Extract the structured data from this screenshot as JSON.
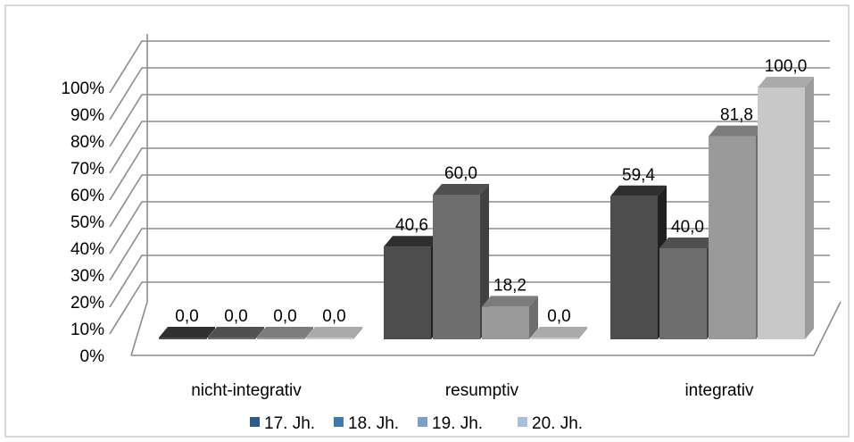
{
  "chart_data": {
    "type": "bar",
    "categories": [
      "nicht-integrativ",
      "resumptiv",
      "integrativ"
    ],
    "series": [
      {
        "name": "17. Jh.",
        "values": [
          0.0,
          40.6,
          59.4
        ],
        "labels": [
          "0,0",
          "40,6",
          "59,4"
        ]
      },
      {
        "name": "18. Jh.",
        "values": [
          0.0,
          60.0,
          40.0
        ],
        "labels": [
          "0,0",
          "60,0",
          "40,0"
        ]
      },
      {
        "name": "19. Jh.",
        "values": [
          0.0,
          18.2,
          81.8
        ],
        "labels": [
          "0,0",
          "18,2",
          "81,8"
        ]
      },
      {
        "name": "20. Jh.",
        "values": [
          0.0,
          0.0,
          100.0
        ],
        "labels": [
          "0,0",
          "0,0",
          "100,0"
        ]
      }
    ],
    "ylim": [
      0,
      100
    ],
    "yticks": [
      0,
      10,
      20,
      30,
      40,
      50,
      60,
      70,
      80,
      90,
      100
    ],
    "ytick_labels": [
      "0%",
      "10%",
      "20%",
      "30%",
      "40%",
      "50%",
      "60%",
      "70%",
      "80%",
      "90%",
      "100%"
    ],
    "grid": true,
    "legend_position": "bottom",
    "title": "",
    "xlabel": "",
    "ylabel": "",
    "series_colors": [
      "#4d4d4d",
      "#6e6e6e",
      "#9a9a9a",
      "#c8c8c8"
    ],
    "legend_colors": [
      "#2e5b87",
      "#3d7ab1",
      "#7f9fc7",
      "#a9bedb"
    ]
  }
}
